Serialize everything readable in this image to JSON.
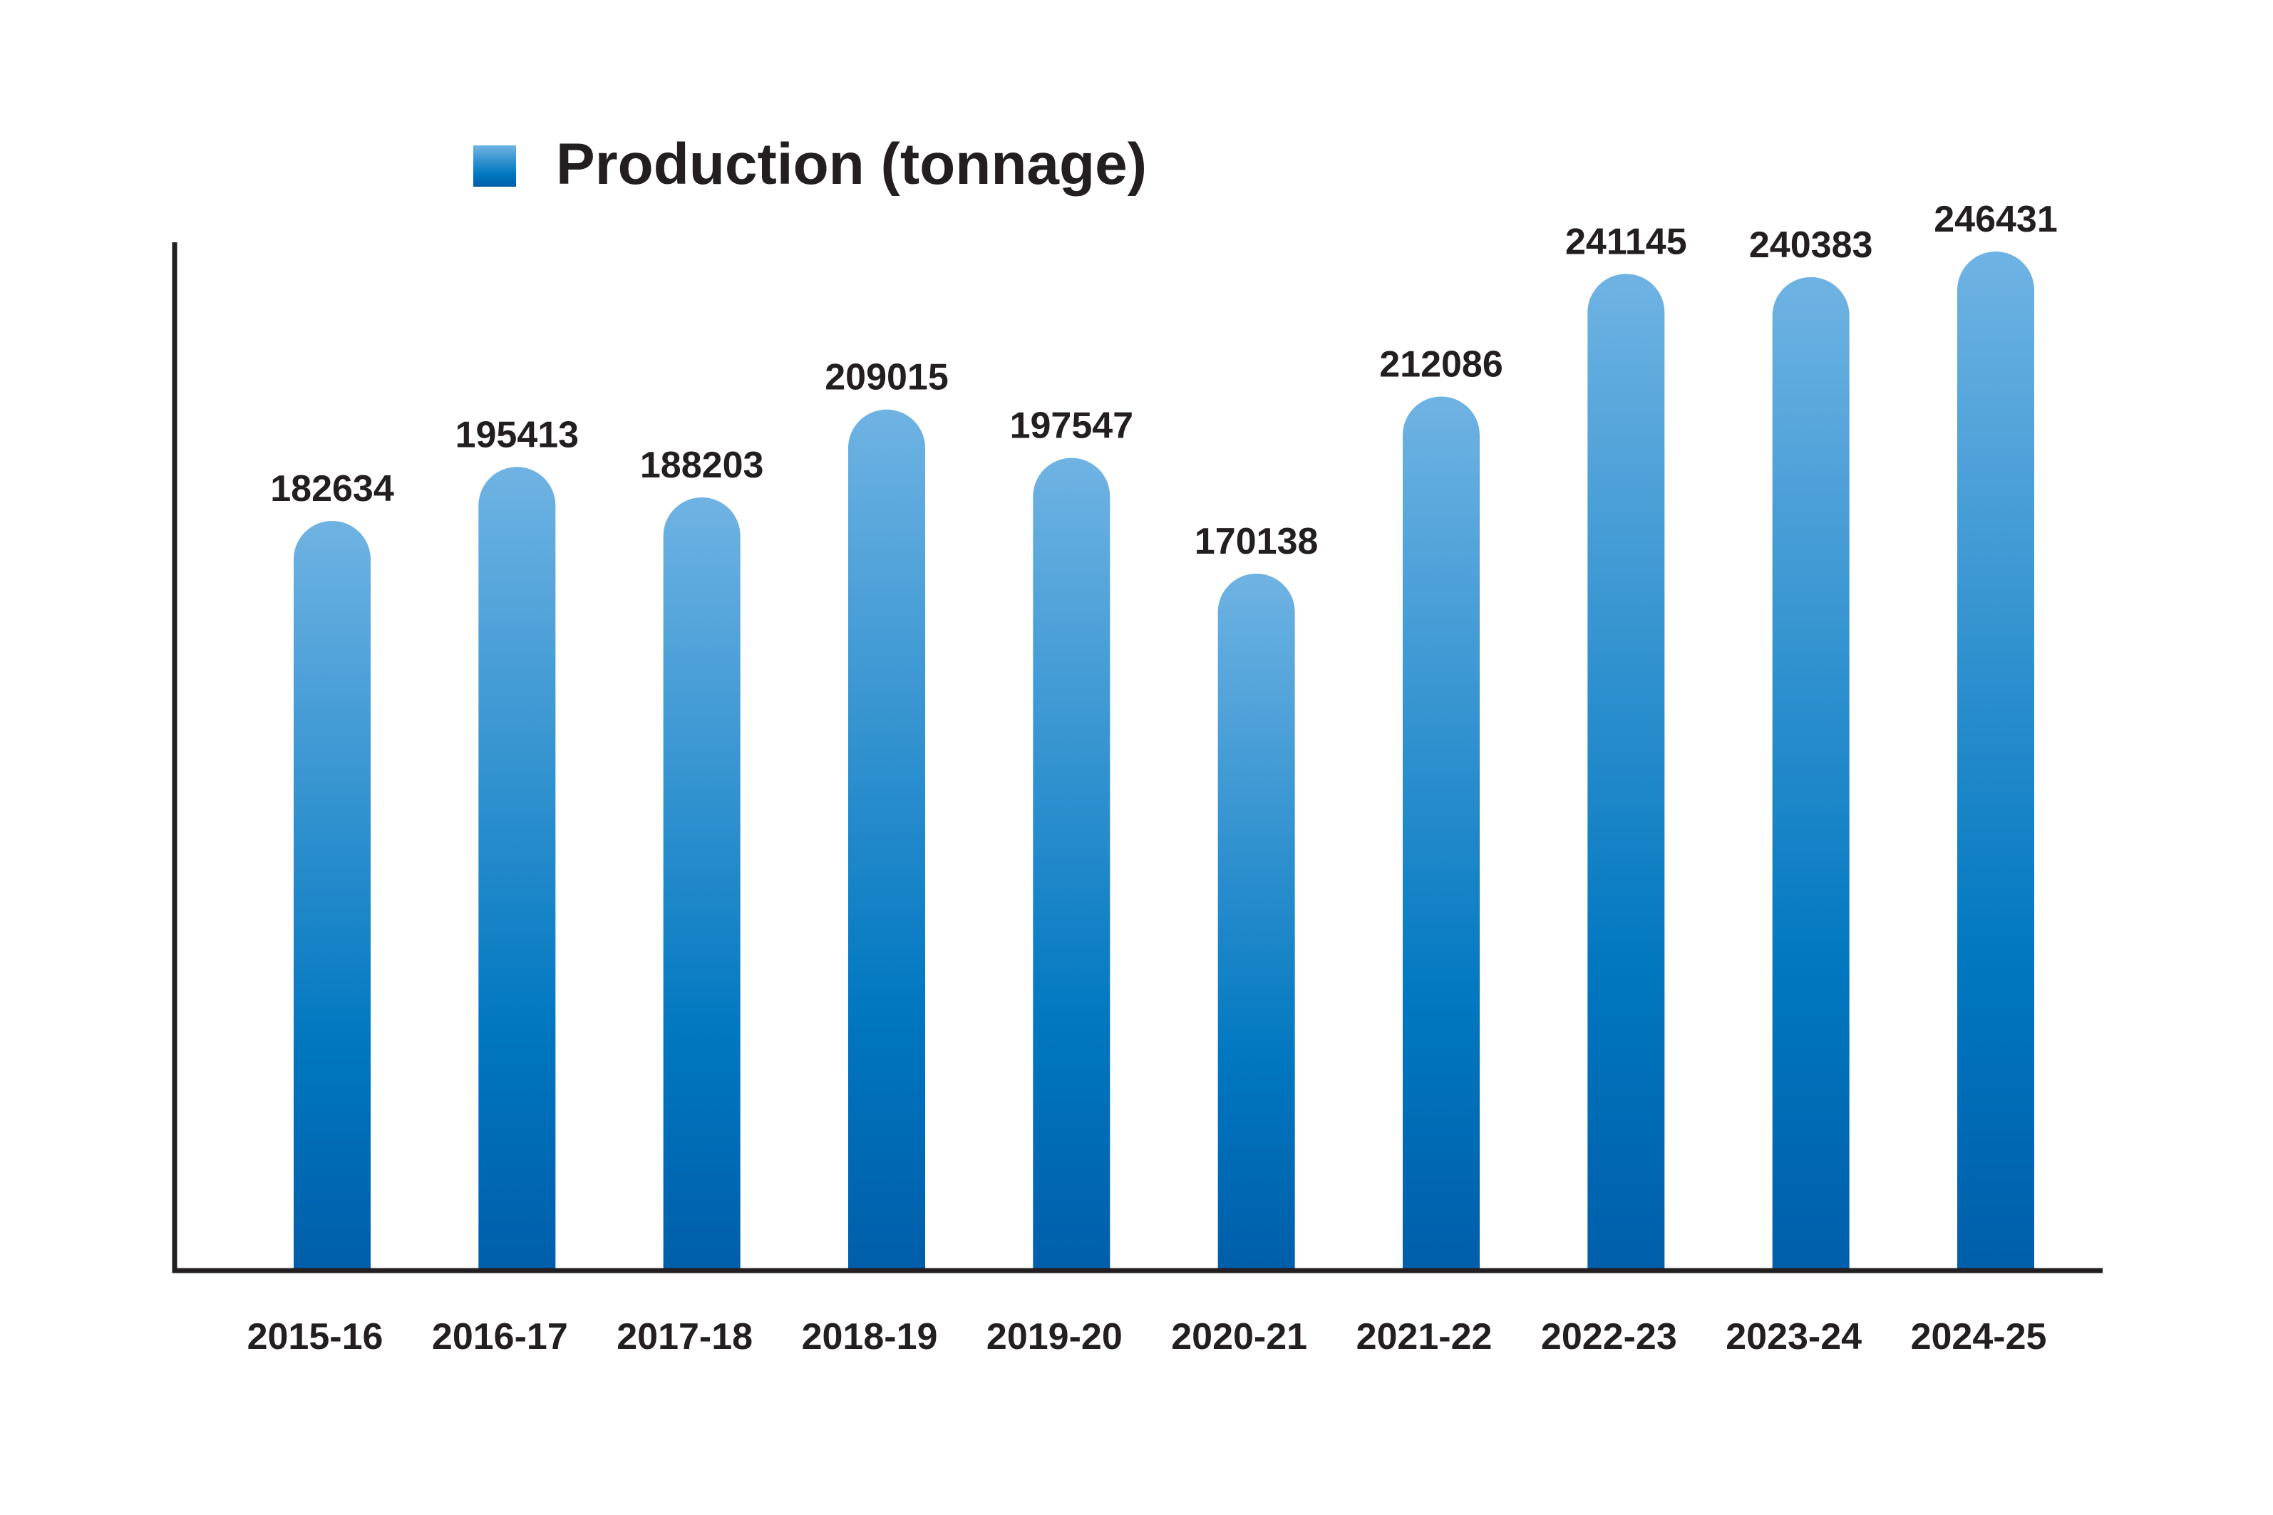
{
  "chart_data": {
    "type": "bar",
    "categories": [
      "2015-16",
      "2016-17",
      "2017-18",
      "2018-19",
      "2019-20",
      "2020-21",
      "2021-22",
      "2022-23",
      "2023-24",
      "2024-25"
    ],
    "series": [
      {
        "name": "Production (tonnage)",
        "values": [
          182634,
          195413,
          188203,
          209015,
          197547,
          170138,
          212086,
          241145,
          240383,
          246431
        ]
      }
    ],
    "value_labels": [
      "182634",
      "195413",
      "188203",
      "209015",
      "197547",
      "170138",
      "212086",
      "241145",
      "240383",
      "246431"
    ],
    "title": "",
    "xlabel": "",
    "ylabel": "",
    "ylim": [
      0,
      262000
    ],
    "grid": false,
    "legend_position": "top-left",
    "colors": {
      "bar_top": "#6fb3e3",
      "bar_bottom": "#005eaa",
      "axis": "#231f20",
      "text": "#231f20"
    }
  }
}
